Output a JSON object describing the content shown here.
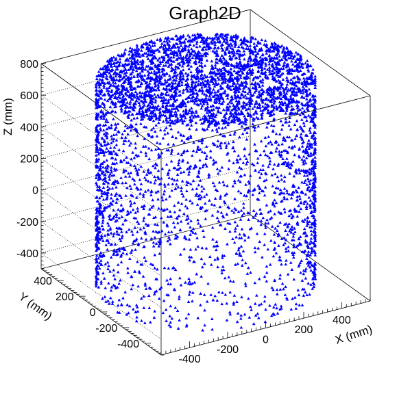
{
  "chart_data": {
    "type": "scatter",
    "subtype": "3d-scatter-cylinder",
    "title": "Graph2D",
    "xlabel": "X (mm)",
    "ylabel": "Y (mm)",
    "zlabel": "Z (mm)",
    "xlim": [
      -550,
      550
    ],
    "ylim": [
      -550,
      550
    ],
    "zlim": [
      -500,
      800
    ],
    "x_ticks": [
      "-400",
      "-200",
      "0",
      "200",
      "400"
    ],
    "y_ticks": [
      "-400",
      "-200",
      "0",
      "200",
      "400"
    ],
    "z_ticks": [
      "-400",
      "-200",
      "0",
      "200",
      "400",
      "600",
      "800"
    ],
    "distribution": {
      "shape": "uniform points on a cylinder surface (side wall and top cap)",
      "radius": 500,
      "z_bottom": -500,
      "z_top": 800,
      "side_points": 2600,
      "top_cap_points": 2400
    },
    "marker": {
      "shape": "triangle",
      "color": "#0000ff"
    },
    "grid": false,
    "legend": "none"
  }
}
